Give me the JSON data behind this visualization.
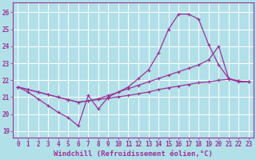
{
  "xlabel": "Windchill (Refroidissement éolien,°C)",
  "ylabel": "",
  "background_color": "#b2e0e8",
  "grid_color": "#ffffff",
  "line_color": "#993399",
  "x_ticks": [
    0,
    1,
    2,
    3,
    4,
    5,
    6,
    7,
    8,
    9,
    10,
    11,
    12,
    13,
    14,
    15,
    16,
    17,
    18,
    19,
    20,
    21,
    22,
    23
  ],
  "y_ticks": [
    19,
    20,
    21,
    22,
    23,
    24,
    25,
    26
  ],
  "xlim": [
    -0.5,
    23.5
  ],
  "ylim": [
    18.6,
    26.6
  ],
  "line1_x": [
    0,
    1,
    2,
    3,
    4,
    5,
    6,
    7,
    8,
    9,
    10,
    11,
    12,
    13,
    14,
    15,
    16,
    17,
    18,
    19,
    20,
    21,
    22,
    23
  ],
  "line1_y": [
    21.6,
    21.3,
    20.9,
    20.5,
    20.1,
    19.8,
    19.3,
    21.1,
    20.3,
    21.0,
    21.3,
    21.6,
    22.1,
    22.6,
    23.6,
    25.0,
    25.9,
    25.9,
    25.6,
    24.1,
    22.9,
    22.1,
    21.9,
    21.9
  ],
  "line2_x": [
    0,
    1,
    2,
    3,
    4,
    5,
    6,
    7,
    8,
    9,
    10,
    11,
    12,
    13,
    14,
    15,
    16,
    17,
    18,
    19,
    20,
    21,
    22,
    23
  ],
  "line2_y": [
    21.6,
    21.45,
    21.3,
    21.15,
    21.0,
    20.85,
    20.7,
    20.78,
    20.86,
    20.94,
    21.02,
    21.1,
    21.2,
    21.3,
    21.45,
    21.55,
    21.65,
    21.75,
    21.85,
    21.9,
    22.0,
    22.05,
    21.95,
    21.9
  ],
  "line3_x": [
    0,
    1,
    2,
    3,
    4,
    5,
    6,
    7,
    8,
    9,
    10,
    11,
    12,
    13,
    14,
    15,
    16,
    17,
    18,
    19,
    20,
    21,
    22,
    23
  ],
  "line3_y": [
    21.6,
    21.45,
    21.3,
    21.15,
    21.0,
    20.85,
    20.7,
    20.78,
    20.9,
    21.1,
    21.3,
    21.5,
    21.7,
    21.9,
    22.1,
    22.3,
    22.5,
    22.7,
    22.9,
    23.2,
    24.0,
    22.1,
    21.95,
    21.9
  ],
  "tick_fontsize": 5.5,
  "xlabel_fontsize": 6.5,
  "marker": "+"
}
